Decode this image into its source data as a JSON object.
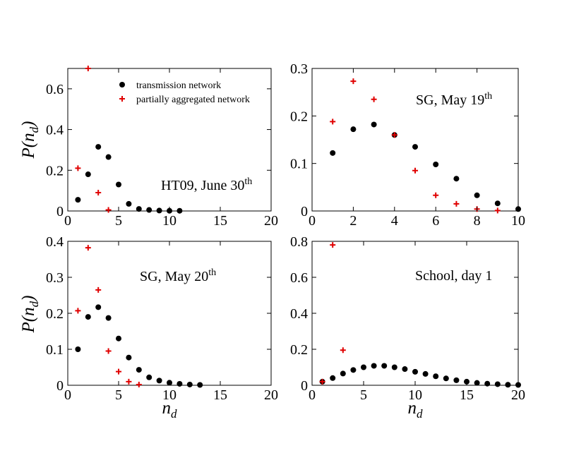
{
  "colors": {
    "transmission": "#000000",
    "aggregated": "#e00000",
    "axis": "#000000"
  },
  "legend": {
    "transmission_label": "transmission network",
    "aggregated_label": "partially aggregated network"
  },
  "axis_labels": {
    "y_main": "P(n",
    "y_sub": "d",
    "y_close": ")",
    "x_main": "n",
    "x_sub": "d"
  },
  "chart_data": [
    {
      "type": "scatter",
      "title": "",
      "annotation": {
        "text": "HT09, June 30",
        "sup": "th"
      },
      "xlim": [
        0,
        20
      ],
      "ylim": [
        0,
        0.7
      ],
      "xticks": [
        0,
        5,
        10,
        15,
        20
      ],
      "yticks": [
        0,
        0.2,
        0.4,
        0.6
      ],
      "ytick_labels": [
        "0",
        "0.2",
        "0.4",
        "0.6"
      ],
      "xlabel": "",
      "ylabel": "P(n_d)",
      "series": [
        {
          "name": "transmission network",
          "marker": "circle",
          "x": [
            1,
            2,
            3,
            4,
            5,
            6,
            7,
            8,
            9,
            10,
            11
          ],
          "y": [
            0.055,
            0.18,
            0.315,
            0.265,
            0.13,
            0.035,
            0.01,
            0.005,
            0.002,
            0.001,
            0.001
          ]
        },
        {
          "name": "partially aggregated network",
          "marker": "plus",
          "x": [
            1,
            2,
            3,
            4
          ],
          "y": [
            0.21,
            0.7,
            0.09,
            0.005
          ]
        }
      ]
    },
    {
      "type": "scatter",
      "title": "",
      "annotation": {
        "text": "SG, May 19",
        "sup": "th"
      },
      "xlim": [
        0,
        10
      ],
      "ylim": [
        0,
        0.3
      ],
      "xticks": [
        0,
        2,
        4,
        6,
        8,
        10
      ],
      "yticks": [
        0,
        0.1,
        0.2,
        0.3
      ],
      "ytick_labels": [
        "0",
        "0.1",
        "0.2",
        "0.3"
      ],
      "xlabel": "",
      "ylabel": "",
      "series": [
        {
          "name": "transmission network",
          "marker": "circle",
          "x": [
            1,
            2,
            3,
            4,
            5,
            6,
            7,
            8,
            9,
            10
          ],
          "y": [
            0.122,
            0.172,
            0.182,
            0.16,
            0.135,
            0.098,
            0.068,
            0.033,
            0.016,
            0.004
          ]
        },
        {
          "name": "partially aggregated network",
          "marker": "plus",
          "x": [
            1,
            2,
            3,
            4,
            5,
            6,
            7,
            8,
            9
          ],
          "y": [
            0.188,
            0.273,
            0.235,
            0.16,
            0.085,
            0.033,
            0.015,
            0.004,
            0.001
          ]
        }
      ]
    },
    {
      "type": "scatter",
      "title": "",
      "annotation": {
        "text": "SG, May 20",
        "sup": "th"
      },
      "xlim": [
        0,
        20
      ],
      "ylim": [
        0,
        0.4
      ],
      "xticks": [
        0,
        5,
        10,
        15,
        20
      ],
      "yticks": [
        0,
        0.1,
        0.2,
        0.3,
        0.4
      ],
      "ytick_labels": [
        "0",
        "0.1",
        "0.2",
        "0.3",
        "0.4"
      ],
      "xlabel": "n_d",
      "ylabel": "P(n_d)",
      "series": [
        {
          "name": "transmission network",
          "marker": "circle",
          "x": [
            1,
            2,
            3,
            4,
            5,
            6,
            7,
            8,
            9,
            10,
            11,
            12,
            13
          ],
          "y": [
            0.1,
            0.19,
            0.217,
            0.187,
            0.13,
            0.077,
            0.043,
            0.022,
            0.013,
            0.007,
            0.004,
            0.002,
            0.001
          ]
        },
        {
          "name": "partially aggregated network",
          "marker": "plus",
          "x": [
            1,
            2,
            3,
            4,
            5,
            6,
            7
          ],
          "y": [
            0.207,
            0.382,
            0.265,
            0.095,
            0.038,
            0.01,
            0.002
          ]
        }
      ]
    },
    {
      "type": "scatter",
      "title": "",
      "annotation": {
        "text": "School, day 1",
        "sup": ""
      },
      "xlim": [
        0,
        20
      ],
      "ylim": [
        0,
        0.8
      ],
      "xticks": [
        0,
        5,
        10,
        15,
        20
      ],
      "yticks": [
        0,
        0.2,
        0.4,
        0.6,
        0.8
      ],
      "ytick_labels": [
        "0",
        "0.2",
        "0.4",
        "0.6",
        "0.8"
      ],
      "xlabel": "n_d",
      "ylabel": "",
      "series": [
        {
          "name": "transmission network",
          "marker": "circle",
          "x": [
            1,
            2,
            3,
            4,
            5,
            6,
            7,
            8,
            9,
            10,
            11,
            12,
            13,
            14,
            15,
            16,
            17,
            18,
            19,
            20
          ],
          "y": [
            0.02,
            0.04,
            0.065,
            0.085,
            0.1,
            0.108,
            0.108,
            0.1,
            0.09,
            0.075,
            0.063,
            0.05,
            0.038,
            0.028,
            0.02,
            0.013,
            0.009,
            0.006,
            0.003,
            0.002
          ]
        },
        {
          "name": "partially aggregated network",
          "marker": "plus",
          "x": [
            1,
            2,
            3
          ],
          "y": [
            0.02,
            0.78,
            0.195
          ]
        }
      ]
    }
  ]
}
